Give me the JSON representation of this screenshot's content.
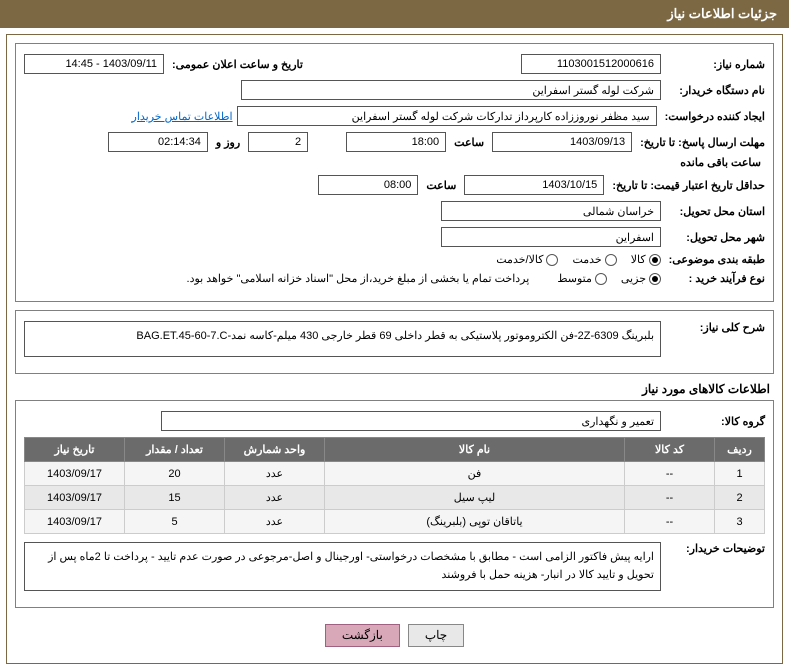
{
  "header": {
    "title": "جزئیات اطلاعات نیاز"
  },
  "fields": {
    "need_no_label": "شماره نیاز:",
    "need_no": "1103001512000616",
    "announce_label": "تاریخ و ساعت اعلان عمومی:",
    "announce_value": "1403/09/11 - 14:45",
    "buyer_org_label": "نام دستگاه خریدار:",
    "buyer_org": "شرکت لوله گستر اسفراین",
    "requester_label": "ایجاد کننده درخواست:",
    "requester": "سید مظفر نوروززاده کارپرداز تدارکات شرکت لوله گستر اسفراین",
    "contact_link": "اطلاعات تماس خریدار",
    "deadline_reply_label": "مهلت ارسال پاسخ: تا تاریخ:",
    "deadline_reply_date": "1403/09/13",
    "time_label": "ساعت",
    "deadline_reply_time": "18:00",
    "remaining_days": "2",
    "days_and": "روز و",
    "remaining_time": "02:14:34",
    "remaining_suffix": "ساعت باقی مانده",
    "price_valid_label": "حداقل تاریخ اعتبار قیمت: تا تاریخ:",
    "price_valid_date": "1403/10/15",
    "price_valid_time": "08:00",
    "delivery_province_label": "استان محل تحویل:",
    "delivery_province": "خراسان شمالی",
    "delivery_city_label": "شهر محل تحویل:",
    "delivery_city": "اسفراین",
    "category_label": "طبقه بندی موضوعی:",
    "cat_goods": "کالا",
    "cat_service": "خدمت",
    "cat_goods_service": "کالا/خدمت",
    "purchase_type_label": "نوع فرآیند خرید :",
    "pt_partial": "جزیی",
    "pt_medium": "متوسط",
    "purchase_note": "پرداخت تمام یا بخشی از مبلغ خرید،از محل \"اسناد خزانه اسلامی\" خواهد بود.",
    "need_summary_label": "شرح کلی نیاز:",
    "need_summary": "بلبرینگ 6309-2Z-فن الکتروموتور پلاستیکی به قطر داخلی 69 قطر خارجی 430 میلم-کاسه نمد-BAG.ET.45-60-7.C",
    "items_title": "اطلاعات کالاهای مورد نیاز",
    "item_group_label": "گروه کالا:",
    "item_group": "تعمیر و نگهداری",
    "buyer_notes_label": "توضیحات خریدار:",
    "buyer_notes": "ارایه پیش فاکتور الزامی است - مطابق با مشخصات درخواستی- اورجینال و اصل-مرجوعی در صورت عدم تایید - پرداخت تا 2ماه پس از تحویل و تایید کالا در انبار- هزینه حمل با فروشند"
  },
  "table": {
    "headers": {
      "row": "ردیف",
      "code": "کد کالا",
      "name": "نام کالا",
      "unit": "واحد شمارش",
      "qty": "تعداد / مقدار",
      "date": "تاریخ نیاز"
    },
    "rows": [
      {
        "n": "1",
        "code": "--",
        "name": "فن",
        "unit": "عدد",
        "qty": "20",
        "date": "1403/09/17"
      },
      {
        "n": "2",
        "code": "--",
        "name": "لیپ سیل",
        "unit": "عدد",
        "qty": "15",
        "date": "1403/09/17"
      },
      {
        "n": "3",
        "code": "--",
        "name": "یاتاقان توپی (بلبرینگ)",
        "unit": "عدد",
        "qty": "5",
        "date": "1403/09/17"
      }
    ]
  },
  "buttons": {
    "print": "چاپ",
    "back": "بازگشت"
  },
  "colors": {
    "header_bg": "#7c6843",
    "table_header": "#6b6b6b",
    "btn_back": "#d8a8b8"
  }
}
